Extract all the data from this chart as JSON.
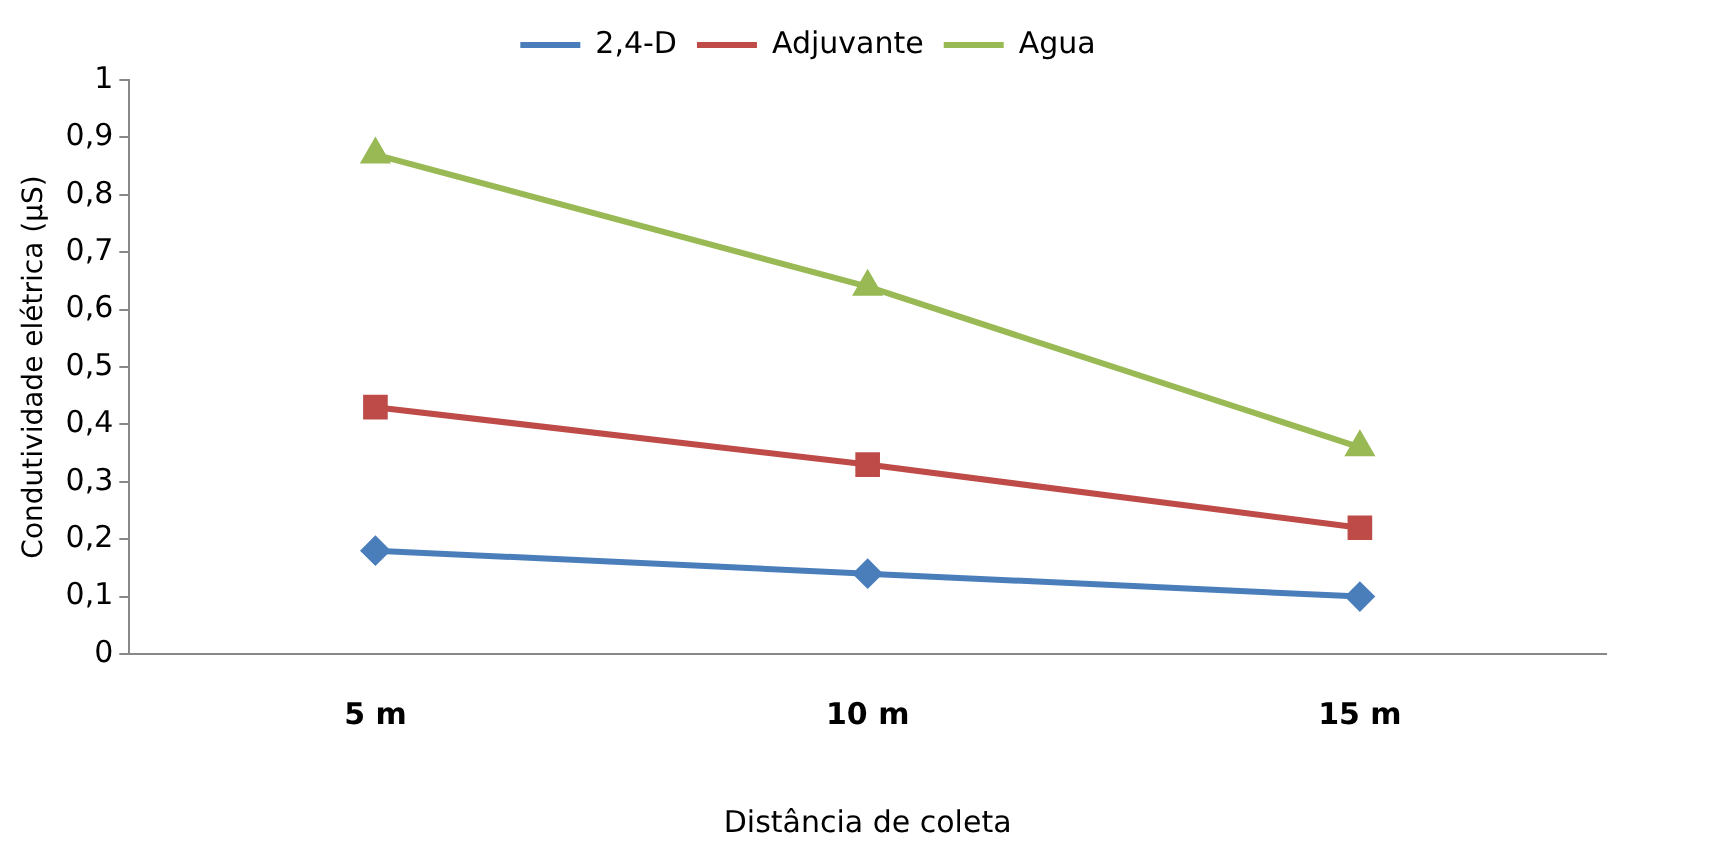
{
  "chart_data": {
    "type": "line",
    "xlabel": "Distância de coleta",
    "ylabel": "Condutividade elétrica (µS)",
    "categories": [
      "5 m",
      "10 m",
      "15 m"
    ],
    "series": [
      {
        "name": "2,4-D",
        "color": "#4a7ebb",
        "marker": "diamond",
        "values": [
          0.18,
          0.14,
          0.1
        ]
      },
      {
        "name": "Adjuvante",
        "color": "#be4b48",
        "marker": "square",
        "values": [
          0.43,
          0.33,
          0.22
        ]
      },
      {
        "name": "Agua",
        "color": "#98b954",
        "marker": "triangle",
        "values": [
          0.87,
          0.64,
          0.36
        ]
      }
    ],
    "ylim": [
      0,
      1
    ],
    "yticks": [
      0,
      {
        "value": 0.1,
        "label": "0,1"
      },
      {
        "value": 0.2,
        "label": "0,2"
      },
      {
        "value": 0.3,
        "label": "0,3"
      },
      {
        "value": 0.4,
        "label": "0,4"
      },
      {
        "value": 0.5,
        "label": "0,5"
      },
      {
        "value": 0.6,
        "label": "0,6"
      },
      {
        "value": 0.7,
        "label": "0,7"
      },
      {
        "value": 0.8,
        "label": "0,8"
      },
      {
        "value": 0.9,
        "label": "0,9"
      },
      1
    ],
    "grid": false,
    "legend": "top",
    "line_style": "solid"
  }
}
